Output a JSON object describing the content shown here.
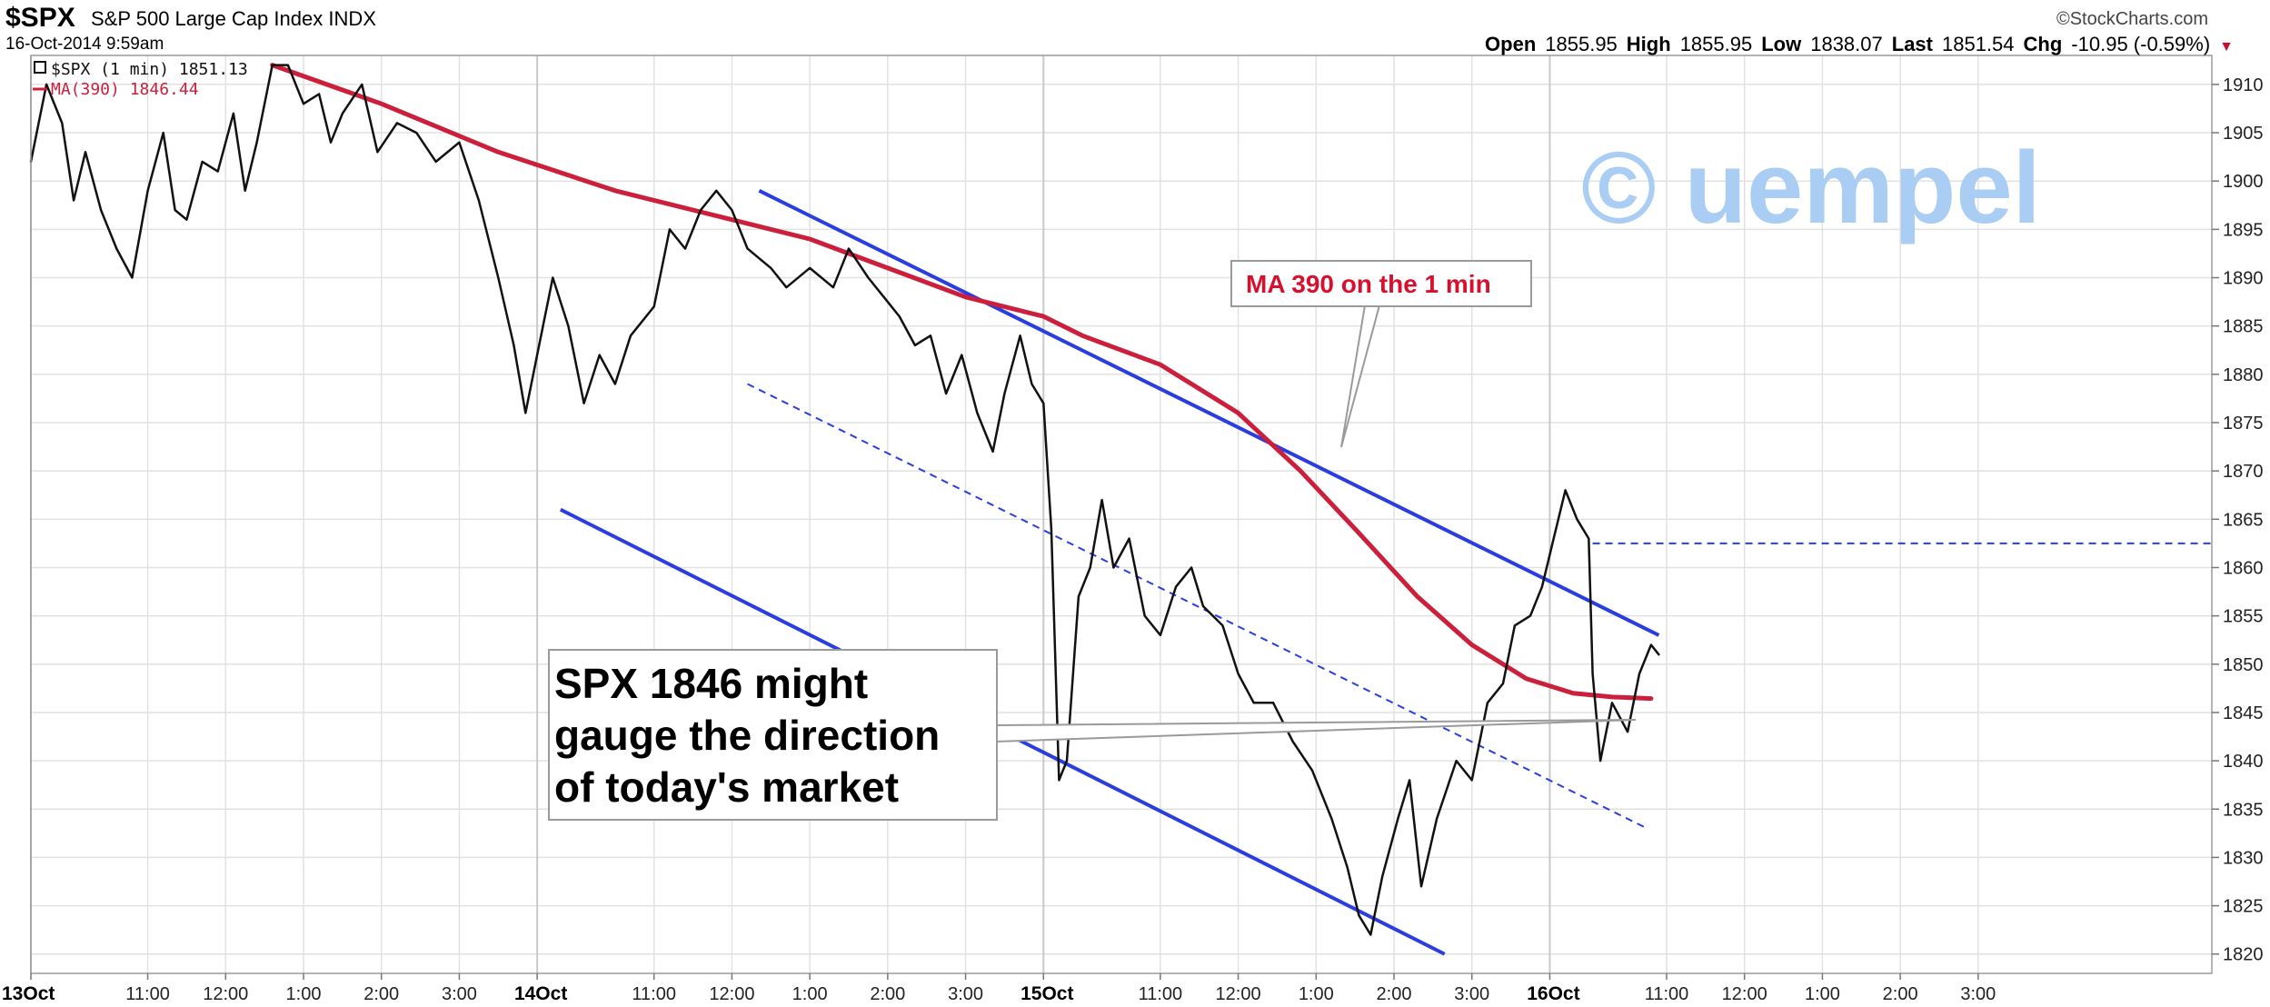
{
  "header": {
    "symbol": "$SPX",
    "description": "S&P 500 Large Cap Index INDX",
    "date": "16-Oct-2014 9:59am",
    "brand": "©StockCharts.com",
    "ohlc": {
      "open_label": "Open",
      "open": "1855.95",
      "high_label": "High",
      "high": "1855.95",
      "low_label": "Low",
      "low": "1838.07",
      "last_label": "Last",
      "last": "1851.54",
      "chg_label": "Chg",
      "chg": "-10.95 (-0.59%)",
      "chg_arrow": "▼"
    }
  },
  "legend": {
    "price": "$SPX (1 min) 1851.13",
    "ma": "MA(390) 1846.44"
  },
  "watermark": "© uempel",
  "annotations": {
    "ma_callout": "MA 390 on the 1 min",
    "main_callout": [
      "SPX 1846 might",
      "gauge the direction",
      "of today's market"
    ]
  },
  "colors": {
    "price": "#111111",
    "ma": "#cc1f3c",
    "trend": "#2a3ee0",
    "grid": "#e1e1e1",
    "watermark": "#a9cdf3"
  },
  "chart_data": {
    "type": "line",
    "ylim": [
      1818,
      1913
    ],
    "y_ticks": [
      1820,
      1825,
      1830,
      1835,
      1840,
      1845,
      1850,
      1855,
      1860,
      1865,
      1870,
      1875,
      1880,
      1885,
      1890,
      1895,
      1900,
      1905,
      1910
    ],
    "x_range": [
      0,
      28
    ],
    "x_ticks": [
      {
        "t": 0,
        "label": "13Oct",
        "bold": true
      },
      {
        "t": 1.5,
        "label": "11:00"
      },
      {
        "t": 2.5,
        "label": "12:00"
      },
      {
        "t": 3.5,
        "label": "1:00"
      },
      {
        "t": 4.5,
        "label": "2:00"
      },
      {
        "t": 5.5,
        "label": "3:00"
      },
      {
        "t": 6.5,
        "label": "14Oct",
        "bold": true
      },
      {
        "t": 8.0,
        "label": "11:00"
      },
      {
        "t": 9.0,
        "label": "12:00"
      },
      {
        "t": 10.0,
        "label": "1:00"
      },
      {
        "t": 11.0,
        "label": "2:00"
      },
      {
        "t": 12.0,
        "label": "3:00"
      },
      {
        "t": 13.0,
        "label": "15Oct",
        "bold": true
      },
      {
        "t": 14.5,
        "label": "11:00"
      },
      {
        "t": 15.5,
        "label": "12:00"
      },
      {
        "t": 16.5,
        "label": "1:00"
      },
      {
        "t": 17.5,
        "label": "2:00"
      },
      {
        "t": 18.5,
        "label": "3:00"
      },
      {
        "t": 19.5,
        "label": "16Oct",
        "bold": true
      },
      {
        "t": 21.0,
        "label": "11:00"
      },
      {
        "t": 22.0,
        "label": "12:00"
      },
      {
        "t": 23.0,
        "label": "1:00"
      },
      {
        "t": 24.0,
        "label": "2:00"
      },
      {
        "t": 25.0,
        "label": "3:00"
      }
    ],
    "series": [
      {
        "key": "price",
        "points": [
          [
            0.0,
            1902
          ],
          [
            0.2,
            1910
          ],
          [
            0.4,
            1906
          ],
          [
            0.55,
            1898
          ],
          [
            0.7,
            1903
          ],
          [
            0.9,
            1897
          ],
          [
            1.1,
            1893
          ],
          [
            1.3,
            1890
          ],
          [
            1.5,
            1899
          ],
          [
            1.7,
            1905
          ],
          [
            1.85,
            1897
          ],
          [
            2.0,
            1896
          ],
          [
            2.2,
            1902
          ],
          [
            2.4,
            1901
          ],
          [
            2.6,
            1907
          ],
          [
            2.75,
            1899
          ],
          [
            2.9,
            1904
          ],
          [
            3.1,
            1912
          ],
          [
            3.3,
            1912
          ],
          [
            3.5,
            1908
          ],
          [
            3.7,
            1909
          ],
          [
            3.85,
            1904
          ],
          [
            4.0,
            1907
          ],
          [
            4.25,
            1910
          ],
          [
            4.45,
            1903
          ],
          [
            4.7,
            1906
          ],
          [
            4.95,
            1905
          ],
          [
            5.2,
            1902
          ],
          [
            5.5,
            1904
          ],
          [
            5.75,
            1898
          ],
          [
            6.0,
            1890
          ],
          [
            6.2,
            1883
          ],
          [
            6.35,
            1876
          ],
          [
            6.5,
            1882
          ],
          [
            6.7,
            1890
          ],
          [
            6.9,
            1885
          ],
          [
            7.1,
            1877
          ],
          [
            7.3,
            1882
          ],
          [
            7.5,
            1879
          ],
          [
            7.7,
            1884
          ],
          [
            8.0,
            1887
          ],
          [
            8.2,
            1895
          ],
          [
            8.4,
            1893
          ],
          [
            8.6,
            1897
          ],
          [
            8.8,
            1899
          ],
          [
            9.0,
            1897
          ],
          [
            9.2,
            1893
          ],
          [
            9.5,
            1891
          ],
          [
            9.7,
            1889
          ],
          [
            10.0,
            1891
          ],
          [
            10.3,
            1889
          ],
          [
            10.5,
            1893
          ],
          [
            10.75,
            1890
          ],
          [
            10.95,
            1888
          ],
          [
            11.15,
            1886
          ],
          [
            11.35,
            1883
          ],
          [
            11.55,
            1884
          ],
          [
            11.75,
            1878
          ],
          [
            11.95,
            1882
          ],
          [
            12.15,
            1876
          ],
          [
            12.35,
            1872
          ],
          [
            12.5,
            1878
          ],
          [
            12.7,
            1884
          ],
          [
            12.85,
            1879
          ],
          [
            13.0,
            1877
          ],
          [
            13.1,
            1864
          ],
          [
            13.2,
            1838
          ],
          [
            13.3,
            1840
          ],
          [
            13.45,
            1857
          ],
          [
            13.6,
            1860
          ],
          [
            13.75,
            1867
          ],
          [
            13.9,
            1860
          ],
          [
            14.1,
            1863
          ],
          [
            14.3,
            1855
          ],
          [
            14.5,
            1853
          ],
          [
            14.7,
            1858
          ],
          [
            14.9,
            1860
          ],
          [
            15.05,
            1856
          ],
          [
            15.3,
            1854
          ],
          [
            15.5,
            1849
          ],
          [
            15.7,
            1846
          ],
          [
            15.95,
            1846
          ],
          [
            16.2,
            1842
          ],
          [
            16.45,
            1839
          ],
          [
            16.7,
            1834
          ],
          [
            16.9,
            1829
          ],
          [
            17.05,
            1824
          ],
          [
            17.2,
            1822
          ],
          [
            17.35,
            1828
          ],
          [
            17.55,
            1834
          ],
          [
            17.7,
            1838
          ],
          [
            17.85,
            1827
          ],
          [
            18.05,
            1834
          ],
          [
            18.3,
            1840
          ],
          [
            18.5,
            1838
          ],
          [
            18.7,
            1846
          ],
          [
            18.9,
            1848
          ],
          [
            19.05,
            1854
          ],
          [
            19.25,
            1855
          ],
          [
            19.4,
            1858
          ],
          [
            19.55,
            1863
          ],
          [
            19.7,
            1868
          ],
          [
            19.85,
            1865
          ],
          [
            20.0,
            1863
          ],
          [
            20.05,
            1849
          ],
          [
            20.15,
            1840
          ],
          [
            20.3,
            1846
          ],
          [
            20.5,
            1843
          ],
          [
            20.65,
            1849
          ],
          [
            20.8,
            1852
          ],
          [
            20.9,
            1851
          ]
        ]
      },
      {
        "key": "ma",
        "points": [
          [
            3.1,
            1912
          ],
          [
            4.5,
            1908
          ],
          [
            6.0,
            1903
          ],
          [
            7.5,
            1899
          ],
          [
            9.0,
            1896
          ],
          [
            10.0,
            1894
          ],
          [
            11.0,
            1891
          ],
          [
            12.0,
            1888
          ],
          [
            13.0,
            1886
          ],
          [
            13.5,
            1884
          ],
          [
            14.5,
            1881
          ],
          [
            15.5,
            1876
          ],
          [
            16.3,
            1870
          ],
          [
            17.0,
            1864
          ],
          [
            17.8,
            1857
          ],
          [
            18.5,
            1852
          ],
          [
            19.2,
            1848.5
          ],
          [
            19.8,
            1847
          ],
          [
            20.3,
            1846.6
          ],
          [
            20.8,
            1846.44
          ]
        ]
      }
    ],
    "trendlines": [
      {
        "key": "upper",
        "from": [
          9.35,
          1899
        ],
        "to": [
          20.9,
          1853
        ]
      },
      {
        "key": "mid",
        "dashed": true,
        "from": [
          9.2,
          1879
        ],
        "to": [
          20.75,
          1833
        ]
      },
      {
        "key": "lower",
        "from": [
          6.8,
          1866
        ],
        "to": [
          18.15,
          1820
        ]
      },
      {
        "key": "level-1863",
        "dashed": true,
        "from": [
          20.05,
          1862.5
        ],
        "to": [
          28,
          1862.5
        ]
      }
    ]
  }
}
